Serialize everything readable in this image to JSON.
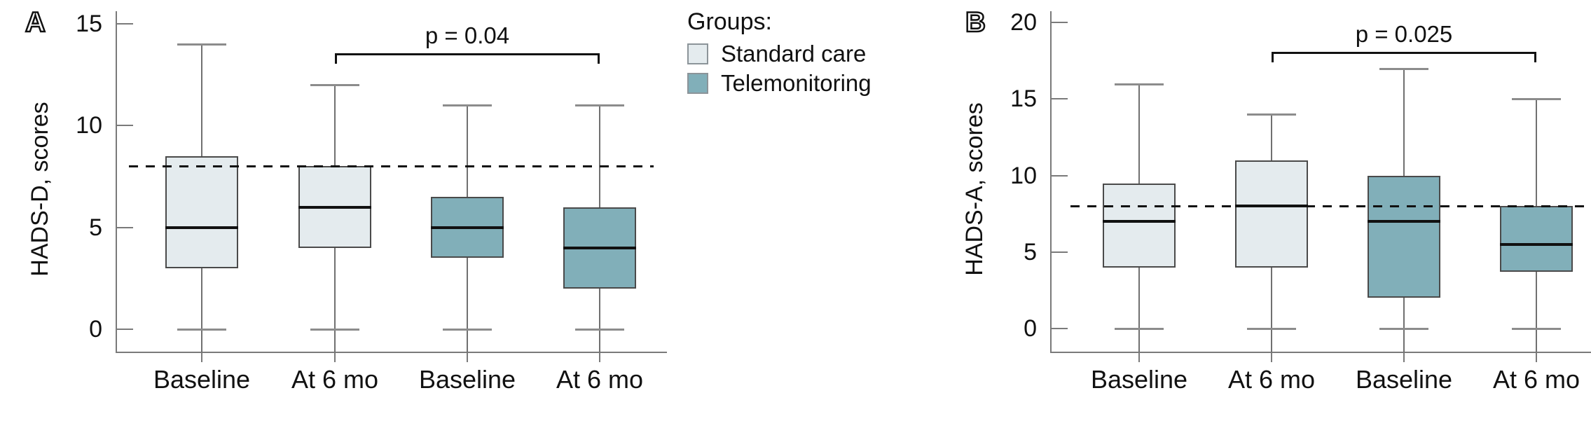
{
  "figure": {
    "background": "#ffffff"
  },
  "legend": {
    "title": "Groups:",
    "items": [
      {
        "label": "Standard care",
        "color": "#e4ebee"
      },
      {
        "label": "Telemonitoring",
        "color": "#81afb9"
      }
    ]
  },
  "colors": {
    "box_border": "#4a4a4a",
    "median_line": "#111111",
    "whisker_stem": "#707070",
    "whisker_cap": "#8c8c8c",
    "axis": "#7a7a7a",
    "reference_line": "#111111",
    "text": "#111111"
  },
  "chart_data": [
    {
      "type": "box",
      "panel_label": "A",
      "ylabel": "HADS-D, scores",
      "ylim": [
        0,
        15
      ],
      "yticks": [
        0,
        5,
        10,
        15
      ],
      "categories": [
        "Baseline",
        "At 6 mo",
        "Baseline",
        "At 6 mo"
      ],
      "reference_line": 8,
      "grid": false,
      "significance": {
        "label": "p = 0.04",
        "from_category_index": 1,
        "to_category_index": 3,
        "height": 13.5
      },
      "series": [
        {
          "group": "Standard care",
          "category": "Baseline",
          "min": 0,
          "q1": 3,
          "median": 5,
          "q3": 8.5,
          "max": 14
        },
        {
          "group": "Standard care",
          "category": "At 6 mo",
          "min": 0,
          "q1": 4,
          "median": 6,
          "q3": 8,
          "max": 12
        },
        {
          "group": "Telemonitoring",
          "category": "Baseline",
          "min": 0,
          "q1": 3.5,
          "median": 5,
          "q3": 6.5,
          "max": 11
        },
        {
          "group": "Telemonitoring",
          "category": "At 6 mo",
          "min": 0,
          "q1": 2,
          "median": 4,
          "q3": 6,
          "max": 11
        }
      ]
    },
    {
      "type": "box",
      "panel_label": "B",
      "ylabel": "HADS-A, scores",
      "ylim": [
        0,
        20
      ],
      "yticks": [
        0,
        5,
        10,
        15,
        20
      ],
      "categories": [
        "Baseline",
        "At 6 mo",
        "Baseline",
        "At 6 mo"
      ],
      "reference_line": 8,
      "grid": false,
      "significance": {
        "label": "p = 0.025",
        "from_category_index": 1,
        "to_category_index": 3,
        "height": 18
      },
      "series": [
        {
          "group": "Standard care",
          "category": "Baseline",
          "min": 0,
          "q1": 4,
          "median": 7,
          "q3": 9.5,
          "max": 16
        },
        {
          "group": "Standard care",
          "category": "At 6 mo",
          "min": 0,
          "q1": 4,
          "median": 8,
          "q3": 11,
          "max": 14
        },
        {
          "group": "Telemonitoring",
          "category": "Baseline",
          "min": 0,
          "q1": 2,
          "median": 7,
          "q3": 10,
          "max": 17
        },
        {
          "group": "Telemonitoring",
          "category": "At 6 mo",
          "min": 0,
          "q1": 3.7,
          "median": 5.5,
          "q3": 8,
          "max": 15
        }
      ]
    }
  ]
}
